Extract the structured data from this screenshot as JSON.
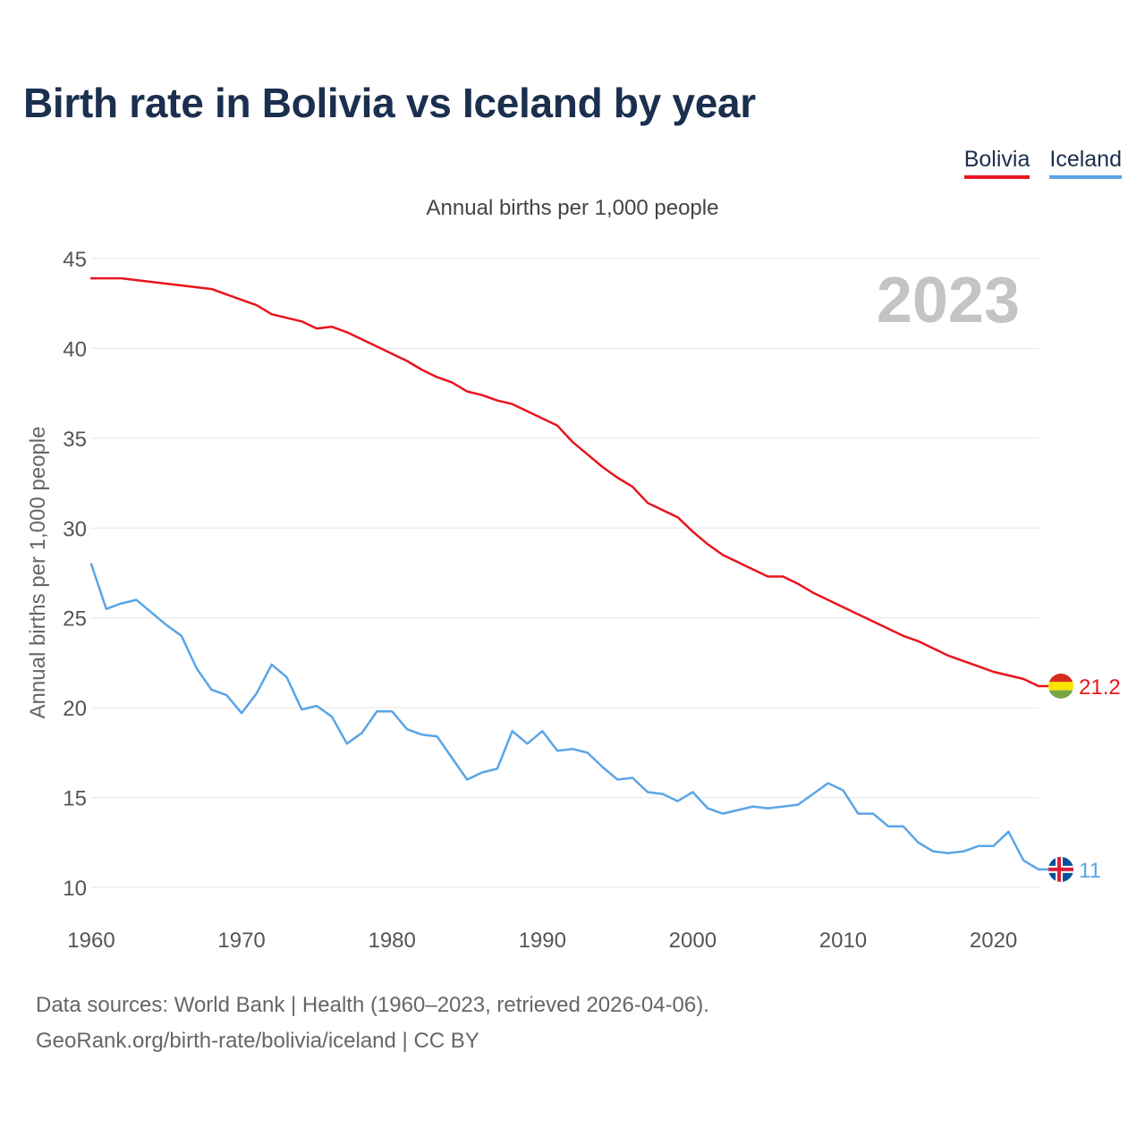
{
  "title": "Birth rate in Bolivia vs Iceland by year",
  "legend": [
    {
      "label": "Bolivia",
      "color": "#e8141c"
    },
    {
      "label": "Iceland",
      "color": "#5aa5e6"
    }
  ],
  "footer": {
    "line1": "Data sources: World Bank | Health (1960–2023, retrieved 2026-04-06).",
    "line2": "GeoRank.org/birth-rate/bolivia/iceland | CC BY"
  },
  "chart_data": {
    "type": "line",
    "title": "Annual births per 1,000 people",
    "xlabel": "",
    "ylabel": "Annual births per 1,000 people",
    "year_watermark": "2023",
    "xlim": [
      1960,
      2023
    ],
    "ylim": [
      10,
      45
    ],
    "xticks": [
      1960,
      1970,
      1980,
      1990,
      2000,
      2010,
      2020
    ],
    "yticks": [
      10,
      15,
      20,
      25,
      30,
      35,
      40,
      45
    ],
    "grid": true,
    "x": [
      1960,
      1961,
      1962,
      1963,
      1964,
      1965,
      1966,
      1967,
      1968,
      1969,
      1970,
      1971,
      1972,
      1973,
      1974,
      1975,
      1976,
      1977,
      1978,
      1979,
      1980,
      1981,
      1982,
      1983,
      1984,
      1985,
      1986,
      1987,
      1988,
      1989,
      1990,
      1991,
      1992,
      1993,
      1994,
      1995,
      1996,
      1997,
      1998,
      1999,
      2000,
      2001,
      2002,
      2003,
      2004,
      2005,
      2006,
      2007,
      2008,
      2009,
      2010,
      2011,
      2012,
      2013,
      2014,
      2015,
      2016,
      2017,
      2018,
      2019,
      2020,
      2021,
      2022,
      2023
    ],
    "series": [
      {
        "name": "Bolivia",
        "color": "#e8141c",
        "end_label": "21.2",
        "values": [
          43.9,
          43.9,
          43.9,
          43.8,
          43.7,
          43.6,
          43.5,
          43.4,
          43.3,
          43.0,
          42.7,
          42.4,
          41.9,
          41.7,
          41.5,
          41.1,
          41.2,
          40.9,
          40.5,
          40.1,
          39.7,
          39.3,
          38.8,
          38.4,
          38.1,
          37.6,
          37.4,
          37.1,
          36.9,
          36.5,
          36.1,
          35.7,
          34.8,
          34.1,
          33.4,
          32.8,
          32.3,
          31.4,
          31.0,
          30.6,
          29.8,
          29.1,
          28.5,
          28.1,
          27.7,
          27.3,
          27.3,
          26.9,
          26.4,
          26.0,
          25.6,
          25.2,
          24.8,
          24.4,
          24.0,
          23.7,
          23.3,
          22.9,
          22.6,
          22.3,
          22.0,
          21.8,
          21.6,
          21.2
        ]
      },
      {
        "name": "Iceland",
        "color": "#5aa5e6",
        "end_label": "11",
        "values": [
          28.0,
          25.5,
          25.8,
          26.0,
          25.3,
          24.6,
          24.0,
          22.2,
          21.0,
          20.7,
          19.7,
          20.8,
          22.4,
          21.7,
          19.9,
          20.1,
          19.5,
          18.0,
          18.6,
          19.8,
          19.8,
          18.8,
          18.5,
          18.4,
          17.2,
          16.0,
          16.4,
          16.6,
          18.7,
          18.0,
          18.7,
          17.6,
          17.7,
          17.5,
          16.7,
          16.0,
          16.1,
          15.3,
          15.2,
          14.8,
          15.3,
          14.4,
          14.1,
          14.3,
          14.5,
          14.4,
          14.5,
          14.6,
          15.2,
          15.8,
          15.4,
          14.1,
          14.1,
          13.4,
          13.4,
          12.5,
          12.0,
          11.9,
          12.0,
          12.3,
          12.3,
          13.1,
          11.5,
          11.0
        ]
      }
    ]
  }
}
